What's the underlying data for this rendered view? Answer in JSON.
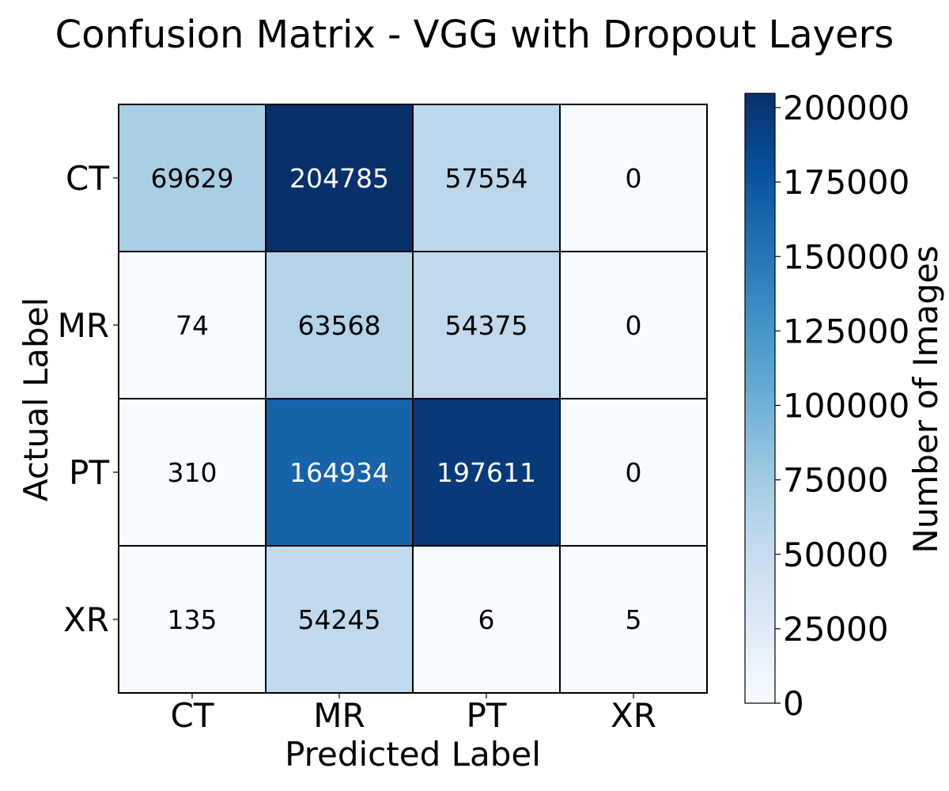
{
  "chart_data": {
    "type": "heatmap",
    "title": "Confusion Matrix - VGG with Dropout Layers",
    "xlabel": "Predicted Label",
    "ylabel": "Actual Label",
    "x_categories": [
      "CT",
      "MR",
      "PT",
      "XR"
    ],
    "y_categories": [
      "CT",
      "MR",
      "PT",
      "XR"
    ],
    "values": [
      [
        69629,
        204785,
        57554,
        0
      ],
      [
        74,
        63568,
        54375,
        0
      ],
      [
        310,
        164934,
        197611,
        0
      ],
      [
        135,
        54245,
        6,
        5
      ]
    ],
    "colorbar": {
      "label": "Number of Images",
      "range": [
        0,
        204785
      ],
      "ticks": [
        "0",
        "25000",
        "50000",
        "75000",
        "100000",
        "125000",
        "150000",
        "175000",
        "200000"
      ],
      "colormap": "Blues"
    },
    "grid": true,
    "colors": {
      "low": "#f7fbff",
      "high": "#08306b",
      "cell_border": "#000000",
      "text_dark": "#000000",
      "text_light": "#ffffff"
    }
  }
}
